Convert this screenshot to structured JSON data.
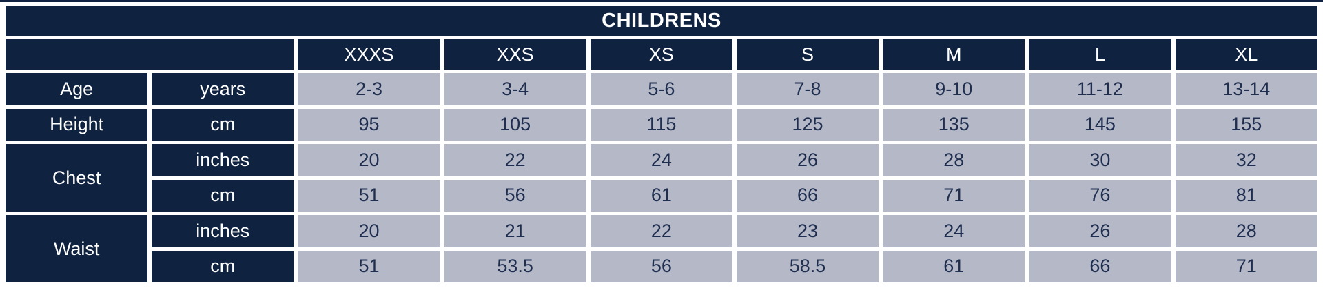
{
  "colors": {
    "navy": "#0f2341",
    "cell_bg": "#b4b8c7",
    "cell_text": "#1f2e4e",
    "gap": "#ffffff"
  },
  "chart_data": {
    "type": "table",
    "title": "CHILDRENS",
    "columns": [
      "XXXS",
      "XXS",
      "XS",
      "S",
      "M",
      "L",
      "XL"
    ],
    "measurements": [
      {
        "label": "Age",
        "rows": [
          {
            "unit": "years",
            "values": [
              "2-3",
              "3-4",
              "5-6",
              "7-8",
              "9-10",
              "11-12",
              "13-14"
            ]
          }
        ]
      },
      {
        "label": "Height",
        "rows": [
          {
            "unit": "cm",
            "values": [
              "95",
              "105",
              "115",
              "125",
              "135",
              "145",
              "155"
            ]
          }
        ]
      },
      {
        "label": "Chest",
        "rows": [
          {
            "unit": "inches",
            "values": [
              "20",
              "22",
              "24",
              "26",
              "28",
              "30",
              "32"
            ]
          },
          {
            "unit": "cm",
            "values": [
              "51",
              "56",
              "61",
              "66",
              "71",
              "76",
              "81"
            ]
          }
        ]
      },
      {
        "label": "Waist",
        "rows": [
          {
            "unit": "inches",
            "values": [
              "20",
              "21",
              "22",
              "23",
              "24",
              "26",
              "28"
            ]
          },
          {
            "unit": "cm",
            "values": [
              "51",
              "53.5",
              "56",
              "58.5",
              "61",
              "66",
              "71"
            ]
          }
        ]
      }
    ]
  }
}
